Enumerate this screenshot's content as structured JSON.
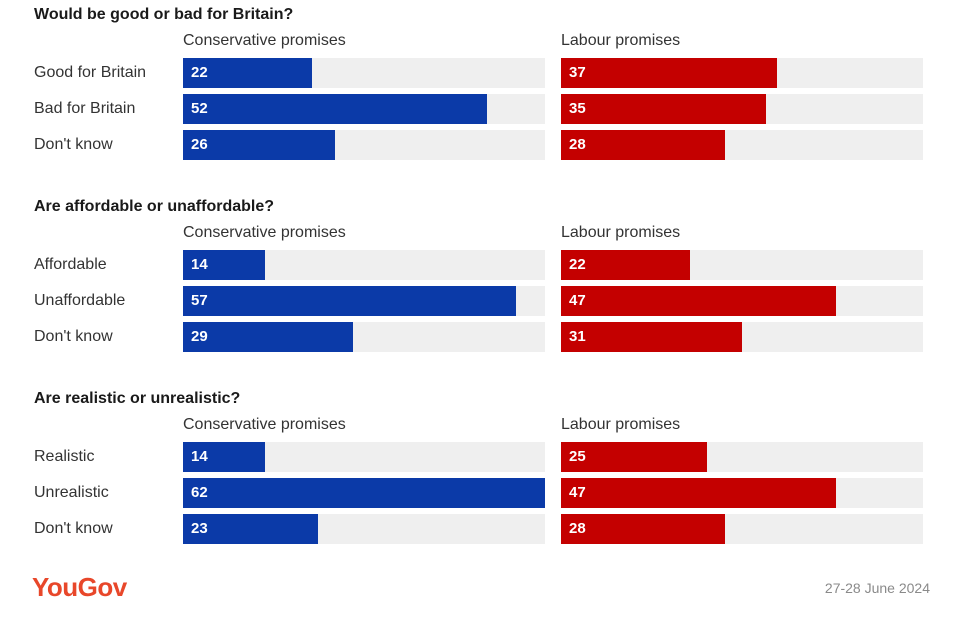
{
  "chart_data": {
    "type": "bar",
    "orientation": "horizontal",
    "xlim": [
      0,
      100
    ],
    "grid": false,
    "colors": {
      "conservative": "#0b3aa8",
      "labour": "#c40000",
      "track": "#efefef"
    },
    "panels": [
      {
        "title": "Would be good or bad for Britain?",
        "categories": [
          "Good for Britain",
          "Bad for Britain",
          "Don't know"
        ],
        "series": [
          {
            "name": "Conservative promises",
            "values": [
              22,
              52,
              26
            ]
          },
          {
            "name": "Labour promises",
            "values": [
              37,
              35,
              28
            ]
          }
        ]
      },
      {
        "title": "Are affordable or unaffordable?",
        "categories": [
          "Affordable",
          "Unaffordable",
          "Don't know"
        ],
        "series": [
          {
            "name": "Conservative promises",
            "values": [
              14,
              57,
              29
            ]
          },
          {
            "name": "Labour promises",
            "values": [
              22,
              47,
              31
            ]
          }
        ]
      },
      {
        "title": "Are realistic or unrealistic?",
        "categories": [
          "Realistic",
          "Unrealistic",
          "Don't know"
        ],
        "series": [
          {
            "name": "Conservative promises",
            "values": [
              14,
              62,
              23
            ]
          },
          {
            "name": "Labour promises",
            "values": [
              25,
              47,
              28
            ]
          }
        ]
      }
    ]
  },
  "footer": {
    "brand": "YouGov",
    "brand_color": "#e8472a",
    "date": "27-28 June 2024"
  }
}
